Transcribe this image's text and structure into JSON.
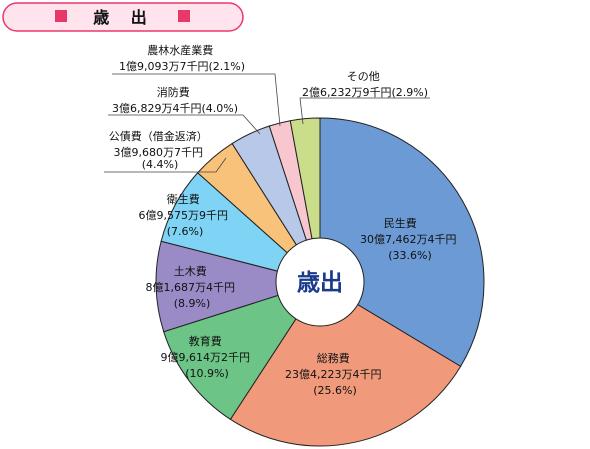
{
  "header": {
    "title": "歳 出",
    "banner_fill": "#ffe4ee",
    "banner_stroke": "#e8386a",
    "square_color": "#e8386a"
  },
  "chart_data": {
    "type": "pie",
    "donut": true,
    "center_label": "歳出",
    "slices": [
      {
        "name": "民生費",
        "amount": "30億7,462万4千円",
        "percent": 33.6,
        "color": "#6c9ad4",
        "label_placement": "inside"
      },
      {
        "name": "総務費",
        "amount": "23億4,223万4千円",
        "percent": 25.6,
        "color": "#f09a7b",
        "label_placement": "inside"
      },
      {
        "name": "教育費",
        "amount": "9億9,614万2千円",
        "percent": 10.9,
        "color": "#6cc486",
        "label_placement": "inside"
      },
      {
        "name": "土木費",
        "amount": "8億1,687万4千円",
        "percent": 8.9,
        "color": "#9a8bc7",
        "label_placement": "inside"
      },
      {
        "name": "衛生費",
        "amount": "6億9,575万9千円",
        "percent": 7.6,
        "color": "#7fd4f5",
        "label_placement": "inside"
      },
      {
        "name": "公債費（借金返済）",
        "amount": "3億9,680万7千円",
        "percent": 4.4,
        "color": "#f9c27a",
        "label_placement": "outside"
      },
      {
        "name": "消防費",
        "amount": "3億6,829万4千円",
        "percent": 4.0,
        "color": "#b8c8e8",
        "label_placement": "outside"
      },
      {
        "name": "農林水産業費",
        "amount": "1億9,093万7千円",
        "percent": 2.1,
        "color": "#f7c6cf",
        "label_placement": "outside"
      },
      {
        "name": "その他",
        "amount": "2億6,232万9千円",
        "percent": 2.9,
        "color": "#c9dd8a",
        "label_placement": "outside"
      }
    ]
  }
}
